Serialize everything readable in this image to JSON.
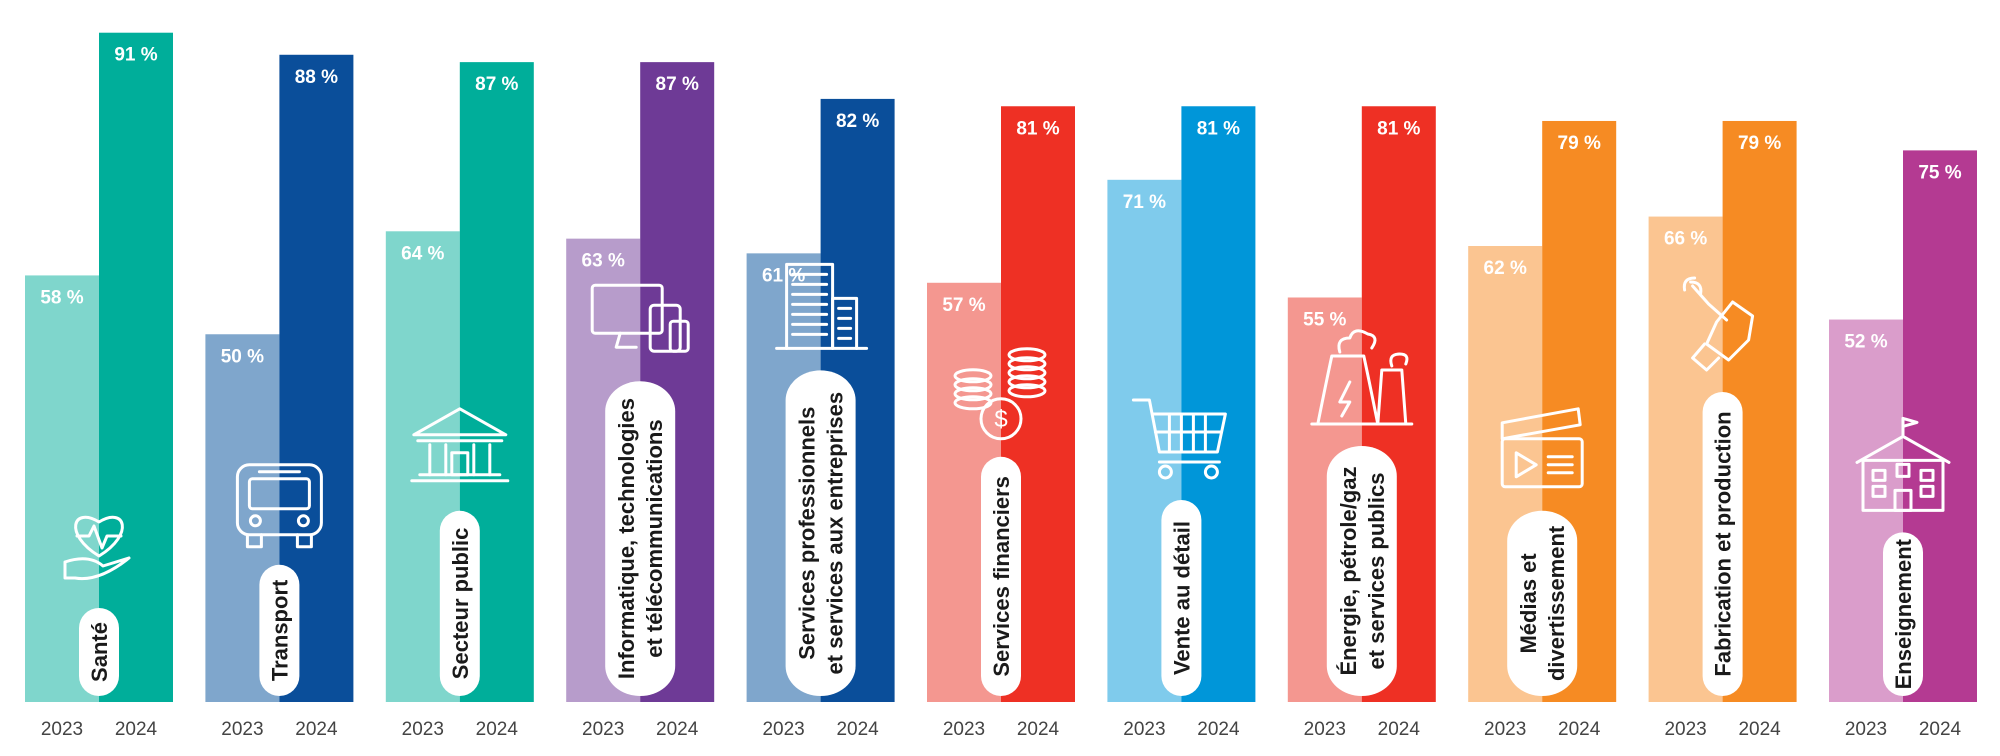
{
  "chart_data": {
    "type": "bar",
    "ylim": [
      0,
      100
    ],
    "grid": false,
    "legend": "none",
    "series": [
      {
        "year_label": "2023",
        "values": [
          58,
          50,
          64,
          63,
          61,
          57,
          71,
          55,
          62,
          66,
          52
        ]
      },
      {
        "year_label": "2024",
        "values": [
          91,
          88,
          87,
          87,
          82,
          81,
          81,
          81,
          79,
          79,
          75
        ]
      }
    ],
    "value_suffix": " %",
    "categories": [
      {
        "label": [
          "Santé"
        ],
        "icon": "heart-hand-icon",
        "color_2023": "#7FD6CC",
        "color_2024": "#00AE9A"
      },
      {
        "label": [
          "Transport"
        ],
        "icon": "bus-icon",
        "color_2023": "#7FA6CC",
        "color_2024": "#0A4E9A"
      },
      {
        "label": [
          "Secteur public"
        ],
        "icon": "government-building-icon",
        "color_2023": "#7FD6CC",
        "color_2024": "#00AE9A"
      },
      {
        "label": [
          "Informatique, technologies",
          "et télécommunications"
        ],
        "icon": "devices-icon",
        "color_2023": "#B79CCB",
        "color_2024": "#6E3A96"
      },
      {
        "label": [
          "Services professionnels",
          "et services aux entreprises"
        ],
        "icon": "office-buildings-icon",
        "color_2023": "#7FA6CC",
        "color_2024": "#0A4E9A"
      },
      {
        "label": [
          "Services financiers"
        ],
        "icon": "coins-icon",
        "color_2023": "#F49790",
        "color_2024": "#EE3024"
      },
      {
        "label": [
          "Vente au détail"
        ],
        "icon": "shopping-cart-icon",
        "color_2023": "#7FCBEC",
        "color_2024": "#0096D9"
      },
      {
        "label": [
          "Énergie, pétrole/gaz",
          "et services publics"
        ],
        "icon": "power-plant-icon",
        "color_2023": "#F49790",
        "color_2024": "#EE3024"
      },
      {
        "label": [
          "Médias et",
          "divertissement"
        ],
        "icon": "clapperboard-icon",
        "color_2023": "#FBC591",
        "color_2024": "#F68B23"
      },
      {
        "label": [
          "Fabrication et production"
        ],
        "icon": "hand-wrench-icon",
        "color_2023": "#FBC591",
        "color_2024": "#F68B23"
      },
      {
        "label": [
          "Enseignement"
        ],
        "icon": "school-icon",
        "color_2023": "#DA9DCB",
        "color_2024": "#B43A92"
      }
    ]
  }
}
